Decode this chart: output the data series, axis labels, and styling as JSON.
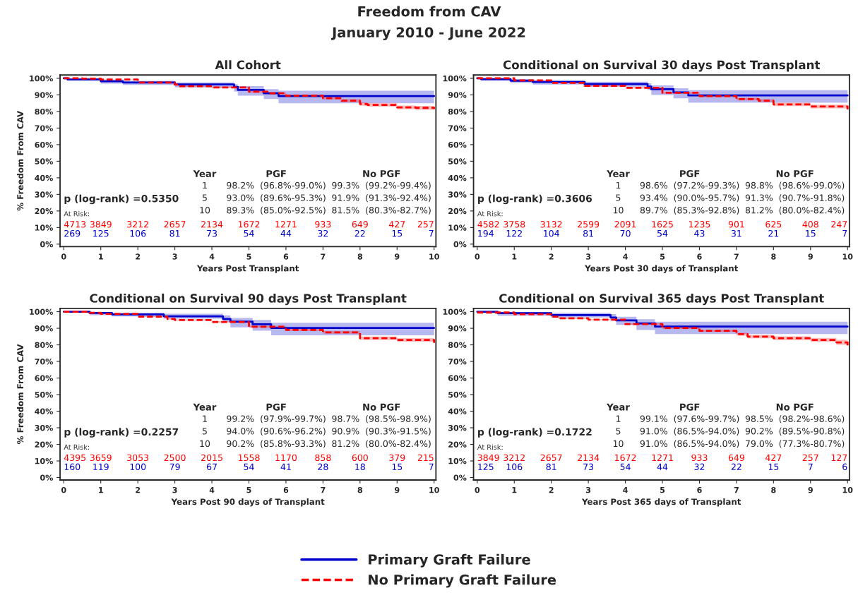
{
  "chart_data": [
    {
      "type": "step",
      "title": "All Cohort",
      "xlabel": "Years Post Transplant",
      "ylabel": "% Freedom From CAV",
      "legend": "bottom",
      "grid": false,
      "xlim": [
        -0.1,
        10.05
      ],
      "xticks": [
        0,
        1,
        2,
        3,
        4,
        5,
        6,
        7,
        8,
        9,
        10
      ],
      "ylim": [
        -1.5,
        102
      ],
      "yticks": [
        {
          "value": 0,
          "label": "0%"
        },
        {
          "value": 10,
          "label": "10%"
        },
        {
          "value": 20,
          "label": "20%"
        },
        {
          "value": 30,
          "label": "30%"
        },
        {
          "value": 40,
          "label": "40%"
        },
        {
          "value": 50,
          "label": "50%"
        },
        {
          "value": 60,
          "label": "60%"
        },
        {
          "value": 70,
          "label": "70%"
        },
        {
          "value": 80,
          "label": "80%"
        },
        {
          "value": 90,
          "label": "90%"
        },
        {
          "value": 100,
          "label": "100%"
        }
      ],
      "series": [
        {
          "name": "Primary Graft Failure",
          "color": "#0000cc",
          "line_style": "solid",
          "x": [
            0,
            0.1,
            1.0,
            1.6,
            3.0,
            4.6,
            4.7,
            5.4,
            5.8,
            10
          ],
          "values": [
            100,
            99.3,
            98.2,
            97.5,
            96.3,
            94.8,
            93.0,
            91.0,
            89.3,
            89.3
          ],
          "lower": [
            100,
            98.8,
            96.8,
            96.0,
            94.5,
            92.0,
            89.6,
            87.5,
            85.0,
            85.0
          ],
          "upper": [
            100,
            99.8,
            99.0,
            98.5,
            97.5,
            96.5,
            95.3,
            93.5,
            92.5,
            92.5
          ]
        },
        {
          "name": "No Primary Graft Failure",
          "color": "#ff0000",
          "line_style": "dashed",
          "x": [
            0,
            0.5,
            1,
            2,
            3,
            3.1,
            4,
            5,
            5.5,
            6,
            7,
            7.5,
            8,
            8.2,
            9,
            9.5,
            10
          ],
          "values": [
            100,
            99.8,
            99.3,
            97.5,
            96.2,
            95.2,
            94.5,
            91.9,
            91.0,
            89.5,
            88.0,
            86.5,
            84.5,
            84.0,
            82.5,
            82.2,
            81.5
          ],
          "lower": [
            100,
            99.6,
            99.2,
            97.2,
            95.8,
            94.8,
            94.0,
            91.3,
            90.4,
            88.8,
            87.2,
            85.6,
            83.5,
            83.0,
            81.4,
            81.0,
            80.3
          ],
          "upper": [
            100,
            99.9,
            99.4,
            97.8,
            96.6,
            95.6,
            95.0,
            92.4,
            91.6,
            90.2,
            88.8,
            87.4,
            85.5,
            85.0,
            83.6,
            83.4,
            82.7
          ]
        }
      ],
      "annotations": [
        "p (log-rank) =0.5350",
        "Year",
        "PGF",
        "No PGF",
        "1",
        "98.2%  (96.8%-99.0%)",
        "99.3%  (99.2%-99.4%)",
        "5",
        "93.0%  (89.6%-95.3%)",
        "91.9%  (91.3%-92.4%)",
        "10",
        "89.3%  (85.0%-92.5%)",
        "81.5%  (80.3%-82.7%)",
        "At Risk:",
        "4713",
        "3849",
        "3212",
        "2657",
        "2134",
        "1672",
        "1271",
        "933",
        "649",
        "427",
        "257",
        "269",
        "125",
        "106",
        "81",
        "73",
        "54",
        "44",
        "32",
        "22",
        "15",
        "7",
        "Freedom from CAV",
        "January 2010 - June 2022"
      ]
    },
    {
      "type": "step",
      "title": "Conditional on Survival 30 days Post Transplant",
      "xlabel": "Years Post 30 days of Transplant",
      "grid": false,
      "xlim": [
        -0.1,
        10.05
      ],
      "xticks": [
        0,
        1,
        2,
        3,
        4,
        5,
        6,
        7,
        8,
        9,
        10
      ],
      "ylim": [
        -1.5,
        102
      ],
      "yticks": [
        {
          "value": 0,
          "label": "0%"
        },
        {
          "value": 10,
          "label": "10%"
        },
        {
          "value": 20,
          "label": "20%"
        },
        {
          "value": 30,
          "label": "30%"
        },
        {
          "value": 40,
          "label": "40%"
        },
        {
          "value": 50,
          "label": "50%"
        },
        {
          "value": 60,
          "label": "60%"
        },
        {
          "value": 70,
          "label": "70%"
        },
        {
          "value": 80,
          "label": "80%"
        },
        {
          "value": 90,
          "label": "90%"
        },
        {
          "value": 100,
          "label": "100%"
        }
      ],
      "series": [
        {
          "color": "#0000cc",
          "line_style": "solid",
          "x": [
            0,
            0.1,
            0.9,
            1.5,
            2.9,
            4.6,
            4.7,
            5.3,
            5.7,
            10
          ],
          "values": [
            100,
            99.5,
            98.6,
            97.8,
            96.5,
            95.0,
            93.4,
            91.5,
            89.7,
            89.7
          ],
          "lower": [
            100,
            98.5,
            97.2,
            96.3,
            95.0,
            93.0,
            90.0,
            88.0,
            85.3,
            85.3
          ],
          "upper": [
            100,
            99.9,
            99.3,
            98.7,
            98.0,
            97.0,
            95.7,
            94.0,
            92.8,
            92.8
          ]
        },
        {
          "color": "#ff0000",
          "line_style": "dashed",
          "x": [
            0,
            1,
            2,
            2.9,
            4,
            5,
            6,
            7,
            7.6,
            8,
            9,
            10
          ],
          "values": [
            100,
            98.8,
            97.3,
            95.5,
            94.3,
            91.3,
            89.3,
            87.5,
            86.5,
            84.3,
            83.0,
            81.2
          ],
          "lower": [
            100,
            98.6,
            97.0,
            95.1,
            93.8,
            90.7,
            88.6,
            86.7,
            85.6,
            83.3,
            81.9,
            80.0
          ],
          "upper": [
            100,
            99.0,
            97.6,
            95.9,
            94.8,
            91.8,
            90.0,
            88.3,
            87.4,
            85.3,
            84.1,
            82.4
          ]
        }
      ],
      "annotations": [
        "p (log-rank) =0.3606",
        "Year",
        "PGF",
        "No PGF",
        "1",
        "98.6%  (97.2%-99.3%)",
        "98.8%  (98.6%-99.0%)",
        "5",
        "93.4%  (90.0%-95.7%)",
        "91.3%  (90.7%-91.8%)",
        "10",
        "89.7%  (85.3%-92.8%)",
        "81.2%  (80.0%-82.4%)",
        "At Risk:",
        "4582",
        "3758",
        "3132",
        "2599",
        "2091",
        "1625",
        "1235",
        "901",
        "625",
        "408",
        "247",
        "194",
        "122",
        "104",
        "81",
        "70",
        "54",
        "43",
        "31",
        "21",
        "15",
        "7"
      ]
    },
    {
      "type": "step",
      "title": "Conditional on Survival 90 days Post Transplant",
      "xlabel": "Years Post 90 days of Transplant",
      "ylabel": "% Freedom From CAV",
      "grid": false,
      "xlim": [
        -0.1,
        10.05
      ],
      "xticks": [
        0,
        1,
        2,
        3,
        4,
        5,
        6,
        7,
        8,
        9,
        10
      ],
      "ylim": [
        -1.5,
        102
      ],
      "yticks": [
        {
          "value": 0,
          "label": "0%"
        },
        {
          "value": 10,
          "label": "10%"
        },
        {
          "value": 20,
          "label": "20%"
        },
        {
          "value": 30,
          "label": "30%"
        },
        {
          "value": 40,
          "label": "40%"
        },
        {
          "value": 50,
          "label": "50%"
        },
        {
          "value": 60,
          "label": "60%"
        },
        {
          "value": 70,
          "label": "70%"
        },
        {
          "value": 80,
          "label": "80%"
        },
        {
          "value": 90,
          "label": "90%"
        },
        {
          "value": 100,
          "label": "100%"
        }
      ],
      "series": [
        {
          "color": "#0000cc",
          "line_style": "solid",
          "x": [
            0,
            0.7,
            1.3,
            2.7,
            4.3,
            4.5,
            5.1,
            5.6,
            10
          ],
          "values": [
            100,
            99.2,
            98.4,
            97.2,
            95.6,
            94.0,
            92.4,
            90.2,
            90.2
          ],
          "lower": [
            100,
            97.9,
            97.2,
            95.8,
            94.0,
            90.6,
            88.5,
            85.8,
            85.8
          ],
          "upper": [
            100,
            99.7,
            99.3,
            98.8,
            97.8,
            96.2,
            95.0,
            93.3,
            93.3
          ]
        },
        {
          "color": "#ff0000",
          "line_style": "dashed",
          "x": [
            0,
            0.7,
            1,
            2,
            2.8,
            3,
            4,
            5,
            6,
            7,
            8,
            9,
            10
          ],
          "values": [
            100,
            99.3,
            98.7,
            97.0,
            95.6,
            95.0,
            93.8,
            90.9,
            89.0,
            87.5,
            84.0,
            83.0,
            81.2
          ],
          "lower": [
            100,
            99.1,
            98.5,
            96.7,
            95.2,
            94.6,
            93.3,
            90.3,
            88.3,
            86.7,
            83.0,
            81.9,
            80.0
          ],
          "upper": [
            100,
            99.5,
            98.9,
            97.3,
            96.0,
            95.4,
            94.3,
            91.5,
            89.7,
            88.3,
            85.0,
            84.1,
            82.4
          ]
        }
      ],
      "annotations": [
        "p (log-rank) =0.2257",
        "Year",
        "PGF",
        "No PGF",
        "1",
        "99.2%  (97.9%-99.7%)",
        "98.7%  (98.5%-98.9%)",
        "5",
        "94.0%  (90.6%-96.2%)",
        "90.9%  (90.3%-91.5%)",
        "10",
        "90.2%  (85.8%-93.3%)",
        "81.2%  (80.0%-82.4%)",
        "At Risk:",
        "4395",
        "3659",
        "3053",
        "2500",
        "2015",
        "1558",
        "1170",
        "858",
        "600",
        "379",
        "215",
        "160",
        "119",
        "100",
        "79",
        "67",
        "54",
        "41",
        "28",
        "18",
        "15",
        "7"
      ]
    },
    {
      "type": "step",
      "title": "Conditional on Survival 365 days Post Transplant",
      "xlabel": "Years Post 365 days of Transplant",
      "grid": false,
      "xlim": [
        -0.1,
        10.05
      ],
      "xticks": [
        0,
        1,
        2,
        3,
        4,
        5,
        6,
        7,
        8,
        9,
        10
      ],
      "ylim": [
        -1.5,
        102
      ],
      "yticks": [
        {
          "value": 0,
          "label": "0%"
        },
        {
          "value": 10,
          "label": "10%"
        },
        {
          "value": 20,
          "label": "20%"
        },
        {
          "value": 30,
          "label": "30%"
        },
        {
          "value": 40,
          "label": "40%"
        },
        {
          "value": 50,
          "label": "50%"
        },
        {
          "value": 60,
          "label": "60%"
        },
        {
          "value": 70,
          "label": "70%"
        },
        {
          "value": 80,
          "label": "80%"
        },
        {
          "value": 90,
          "label": "90%"
        },
        {
          "value": 100,
          "label": "100%"
        }
      ],
      "series": [
        {
          "color": "#0000cc",
          "line_style": "solid",
          "x": [
            0,
            0.55,
            2.0,
            3.6,
            3.75,
            4.3,
            4.8,
            10
          ],
          "values": [
            100,
            99.1,
            98.0,
            96.5,
            94.8,
            93.0,
            91.0,
            91.0
          ],
          "lower": [
            100,
            97.6,
            96.5,
            94.5,
            92.0,
            89.0,
            86.5,
            86.5
          ],
          "upper": [
            100,
            99.7,
            99.3,
            98.5,
            97.0,
            95.5,
            94.0,
            94.0
          ]
        },
        {
          "color": "#ff0000",
          "line_style": "dashed",
          "x": [
            0,
            1,
            2,
            2.2,
            3,
            4,
            5,
            6,
            7,
            7.3,
            8,
            9,
            9.7,
            10
          ],
          "values": [
            99.5,
            98.5,
            97.0,
            96.0,
            95.2,
            92.5,
            90.2,
            88.5,
            86.5,
            85.0,
            84.0,
            83.0,
            81.5,
            79.0
          ],
          "lower": [
            99.3,
            98.2,
            96.7,
            95.6,
            94.8,
            92.0,
            89.5,
            87.8,
            85.6,
            84.0,
            82.9,
            81.8,
            80.0,
            77.3
          ],
          "upper": [
            99.7,
            98.8,
            97.3,
            96.4,
            95.6,
            93.0,
            90.8,
            89.2,
            87.4,
            86.0,
            85.1,
            84.2,
            83.0,
            80.7
          ]
        }
      ],
      "annotations": [
        "p (log-rank) =0.1722",
        "Year",
        "PGF",
        "No PGF",
        "1",
        "99.1%  (97.6%-99.7%)",
        "98.5%  (98.2%-98.6%)",
        "5",
        "91.0%  (86.5%-94.0%)",
        "90.2%  (89.5%-90.8%)",
        "10",
        "91.0%  (86.5%-94.0%)",
        "79.0%  (77.3%-80.7%)",
        "At Risk:",
        "3849",
        "3212",
        "2657",
        "2134",
        "1672",
        "1271",
        "933",
        "649",
        "427",
        "257",
        "127",
        "125",
        "106",
        "81",
        "73",
        "54",
        "44",
        "32",
        "22",
        "15",
        "7",
        "6"
      ]
    }
  ]
}
